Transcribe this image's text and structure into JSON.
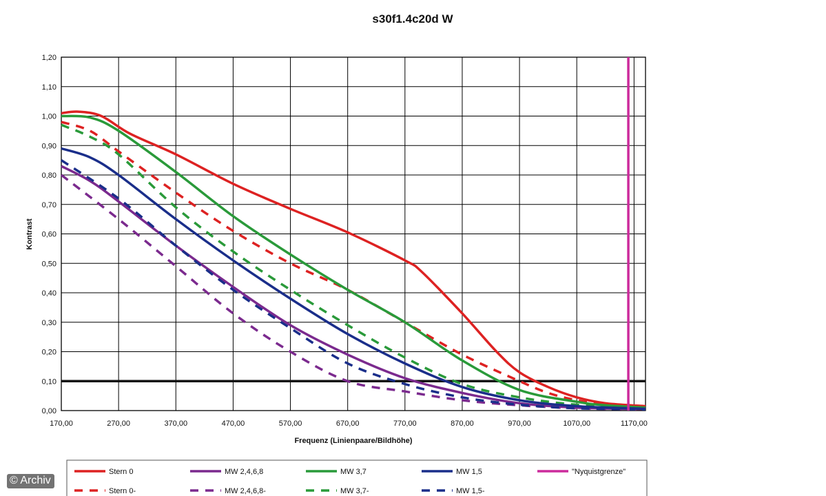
{
  "chart_data": {
    "type": "line",
    "title": "s30f1.4c20d W",
    "xlabel": "Frequenz (Linienpaare/Bildhöhe)",
    "ylabel": "Kontrast",
    "xlim": [
      170,
      1190
    ],
    "ylim": [
      0,
      1.2
    ],
    "x_ticks": [
      "170,00",
      "270,00",
      "370,00",
      "470,00",
      "570,00",
      "670,00",
      "770,00",
      "870,00",
      "970,00",
      "1070,00",
      "1170,00"
    ],
    "y_ticks": [
      "0,00",
      "0,10",
      "0,20",
      "0,30",
      "0,40",
      "0,50",
      "0,60",
      "0,70",
      "0,80",
      "0,90",
      "1,00",
      "1,10",
      "1,20"
    ],
    "grid": true,
    "threshold_line": 0.1,
    "nyquist_x": 1160,
    "series": [
      {
        "name": "Stern 0",
        "color": "#dd2222",
        "dash": false,
        "points": [
          [
            170,
            1.01
          ],
          [
            200,
            1.015
          ],
          [
            240,
            1.0
          ],
          [
            290,
            0.94
          ],
          [
            370,
            0.87
          ],
          [
            470,
            0.77
          ],
          [
            570,
            0.685
          ],
          [
            670,
            0.605
          ],
          [
            770,
            0.51
          ],
          [
            800,
            0.47
          ],
          [
            870,
            0.33
          ],
          [
            930,
            0.2
          ],
          [
            970,
            0.13
          ],
          [
            1020,
            0.08
          ],
          [
            1070,
            0.045
          ],
          [
            1120,
            0.025
          ],
          [
            1190,
            0.015
          ]
        ]
      },
      {
        "name": "Stern 0-",
        "color": "#dd2222",
        "dash": true,
        "points": [
          [
            170,
            0.98
          ],
          [
            220,
            0.95
          ],
          [
            270,
            0.88
          ],
          [
            370,
            0.74
          ],
          [
            470,
            0.61
          ],
          [
            570,
            0.5
          ],
          [
            670,
            0.41
          ],
          [
            770,
            0.3
          ],
          [
            870,
            0.19
          ],
          [
            970,
            0.1
          ],
          [
            1020,
            0.06
          ],
          [
            1070,
            0.035
          ],
          [
            1120,
            0.02
          ],
          [
            1190,
            0.012
          ]
        ]
      },
      {
        "name": "MW 2,4,6,8",
        "color": "#7b2a8e",
        "dash": false,
        "points": [
          [
            170,
            0.83
          ],
          [
            220,
            0.78
          ],
          [
            270,
            0.71
          ],
          [
            370,
            0.56
          ],
          [
            470,
            0.42
          ],
          [
            570,
            0.29
          ],
          [
            670,
            0.19
          ],
          [
            770,
            0.11
          ],
          [
            870,
            0.06
          ],
          [
            970,
            0.025
          ],
          [
            1070,
            0.01
          ],
          [
            1190,
            0.005
          ]
        ]
      },
      {
        "name": "MW 2,4,6,8-",
        "color": "#7b2a8e",
        "dash": true,
        "points": [
          [
            170,
            0.8
          ],
          [
            270,
            0.65
          ],
          [
            370,
            0.49
          ],
          [
            470,
            0.33
          ],
          [
            570,
            0.2
          ],
          [
            670,
            0.1
          ],
          [
            770,
            0.065
          ],
          [
            870,
            0.035
          ],
          [
            970,
            0.018
          ],
          [
            1070,
            0.008
          ],
          [
            1190,
            0.004
          ]
        ]
      },
      {
        "name": "MW 3,7",
        "color": "#2a9a3a",
        "dash": false,
        "points": [
          [
            170,
            1.0
          ],
          [
            220,
            0.995
          ],
          [
            270,
            0.95
          ],
          [
            370,
            0.81
          ],
          [
            470,
            0.66
          ],
          [
            570,
            0.53
          ],
          [
            670,
            0.41
          ],
          [
            770,
            0.3
          ],
          [
            870,
            0.17
          ],
          [
            970,
            0.07
          ],
          [
            1070,
            0.03
          ],
          [
            1120,
            0.018
          ],
          [
            1190,
            0.01
          ]
        ]
      },
      {
        "name": "MW 3,7-",
        "color": "#2a9a3a",
        "dash": true,
        "points": [
          [
            170,
            0.97
          ],
          [
            220,
            0.93
          ],
          [
            270,
            0.87
          ],
          [
            370,
            0.69
          ],
          [
            470,
            0.54
          ],
          [
            570,
            0.41
          ],
          [
            670,
            0.29
          ],
          [
            770,
            0.18
          ],
          [
            870,
            0.09
          ],
          [
            970,
            0.045
          ],
          [
            1070,
            0.02
          ],
          [
            1190,
            0.008
          ]
        ]
      },
      {
        "name": "MW 1,5",
        "color": "#1a2e8a",
        "dash": false,
        "points": [
          [
            170,
            0.89
          ],
          [
            220,
            0.86
          ],
          [
            270,
            0.8
          ],
          [
            370,
            0.65
          ],
          [
            470,
            0.51
          ],
          [
            570,
            0.38
          ],
          [
            670,
            0.26
          ],
          [
            770,
            0.16
          ],
          [
            870,
            0.08
          ],
          [
            970,
            0.035
          ],
          [
            1070,
            0.015
          ],
          [
            1190,
            0.006
          ]
        ]
      },
      {
        "name": "MW 1,5-",
        "color": "#1a2e8a",
        "dash": true,
        "points": [
          [
            170,
            0.85
          ],
          [
            270,
            0.72
          ],
          [
            370,
            0.56
          ],
          [
            470,
            0.41
          ],
          [
            570,
            0.28
          ],
          [
            670,
            0.16
          ],
          [
            770,
            0.09
          ],
          [
            870,
            0.045
          ],
          [
            970,
            0.02
          ],
          [
            1070,
            0.008
          ],
          [
            1190,
            0.004
          ]
        ]
      },
      {
        "name": "\"Nyquistgrenze\"",
        "color": "#cc2b9c",
        "dash": false,
        "vertical": true,
        "points": [
          [
            1160,
            0
          ],
          [
            1160,
            1.2
          ]
        ]
      }
    ]
  },
  "watermark": "© Archiv"
}
